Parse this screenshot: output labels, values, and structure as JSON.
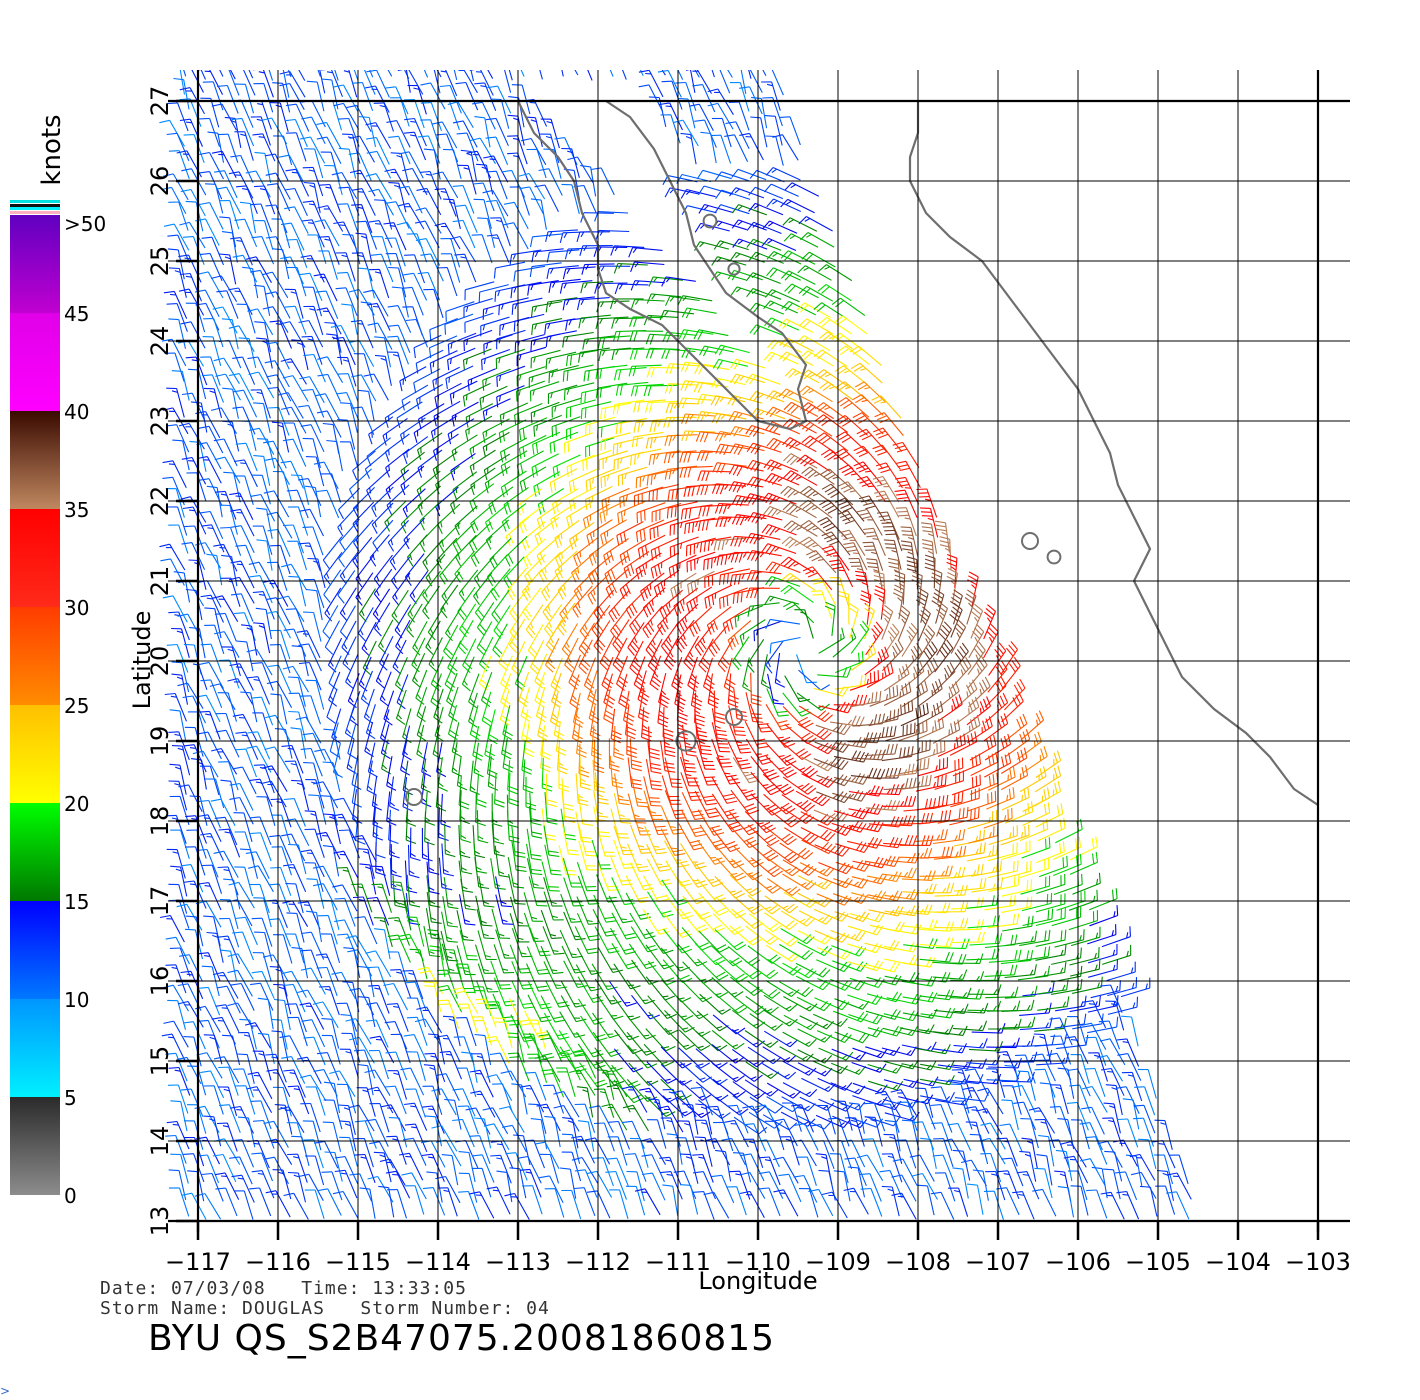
{
  "axes": {
    "xlabel": "Longitude",
    "ylabel": "Latitude",
    "x_ticks": [
      "−117",
      "−116",
      "−115",
      "−114",
      "−113",
      "−112",
      "−111",
      "−110",
      "−109",
      "−108",
      "−107",
      "−106",
      "−105",
      "−104",
      "−103"
    ],
    "y_ticks": [
      "13",
      "14",
      "15",
      "16",
      "17",
      "18",
      "19",
      "20",
      "21",
      "22",
      "23",
      "24",
      "25",
      "26",
      "27"
    ],
    "xlim": [
      -117,
      -103
    ],
    "ylim": [
      13,
      27
    ],
    "grid": true
  },
  "colorbar": {
    "unit": "knots",
    "labels": [
      ">50",
      "45",
      "40",
      "35",
      "30",
      "25",
      "20",
      "15",
      "10",
      "5",
      "0"
    ],
    "bands": [
      {
        "from": 0,
        "to": 5,
        "colors": [
          "#8c8c8c",
          "#2a2a2a"
        ]
      },
      {
        "from": 5,
        "to": 10,
        "colors": [
          "#00f0ff",
          "#0096ff"
        ]
      },
      {
        "from": 10,
        "to": 15,
        "colors": [
          "#0078ff",
          "#0000ff"
        ]
      },
      {
        "from": 15,
        "to": 20,
        "colors": [
          "#007800",
          "#00ff00"
        ]
      },
      {
        "from": 20,
        "to": 25,
        "colors": [
          "#ffff00",
          "#ffc000"
        ]
      },
      {
        "from": 25,
        "to": 30,
        "colors": [
          "#ff8c00",
          "#ff3c00"
        ]
      },
      {
        "from": 30,
        "to": 35,
        "colors": [
          "#ff2a1a",
          "#ff0000"
        ]
      },
      {
        "from": 35,
        "to": 40,
        "colors": [
          "#c08860",
          "#3a0a00"
        ]
      },
      {
        "from": 40,
        "to": 45,
        "colors": [
          "#ff00ff",
          "#e000e8"
        ]
      },
      {
        "from": 45,
        "to": 50,
        "colors": [
          "#c000d0",
          "#6000c0"
        ]
      }
    ]
  },
  "storm": {
    "center_lon": -109.4,
    "center_lat": 20.2
  },
  "metadata": {
    "date_line": "Date: 07/03/08   Time: 13:33:05",
    "storm_line": "Storm Name: DOUGLAS   Storm Number: 04",
    "product": "BYU  QS_S2B47075.20081860815"
  },
  "colors": {
    "coastline": "#6e6e6e",
    "grid": "#000000"
  },
  "corner_glyph": ">"
}
